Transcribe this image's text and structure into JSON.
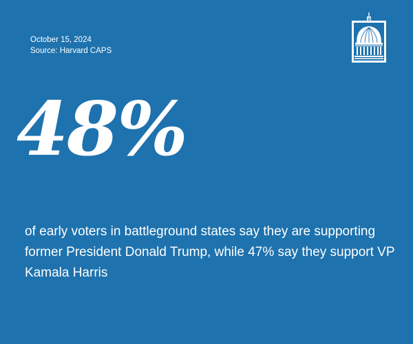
{
  "meta": {
    "date": "October 15, 2024",
    "source": "Source: Harvard CAPS"
  },
  "logo": {
    "icon": "capitol-dome-icon"
  },
  "stat": {
    "value": "48%"
  },
  "statement": {
    "text": "of early voters in battleground states say they are supporting former President Donald Trump, while 47% say they support VP Kamala Harris"
  },
  "colors": {
    "background": "#1e72ae",
    "text": "#ffffff"
  }
}
